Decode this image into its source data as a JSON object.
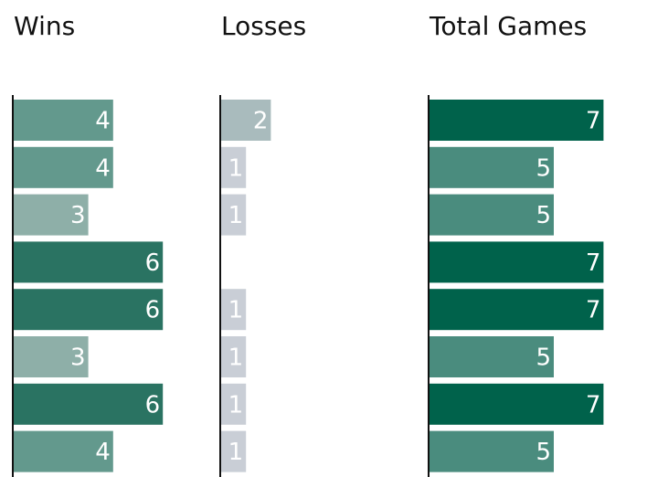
{
  "chart_data": [
    {
      "type": "bar",
      "title": "Wins",
      "values": [
        4,
        4,
        3,
        6,
        6,
        3,
        6,
        4
      ],
      "colors": [
        "#63998d",
        "#63998d",
        "#8eafa8",
        "#2a7362",
        "#2a7362",
        "#8eafa8",
        "#2a7362",
        "#63998d"
      ]
    },
    {
      "type": "bar",
      "title": "Losses",
      "values": [
        2,
        1,
        1,
        0,
        1,
        1,
        1,
        1
      ],
      "colors": [
        "#a9bbbd",
        "#c9ced6",
        "#c9ced6",
        "#c9ced6",
        "#c9ced6",
        "#c9ced6",
        "#c9ced6",
        "#c9ced6"
      ]
    },
    {
      "type": "bar",
      "title": "Total Games",
      "values": [
        7,
        5,
        5,
        7,
        7,
        5,
        7,
        5
      ],
      "colors": [
        "#00624b",
        "#4a8c7e",
        "#4a8c7e",
        "#00624b",
        "#00624b",
        "#4a8c7e",
        "#00624b",
        "#4a8c7e"
      ]
    }
  ]
}
